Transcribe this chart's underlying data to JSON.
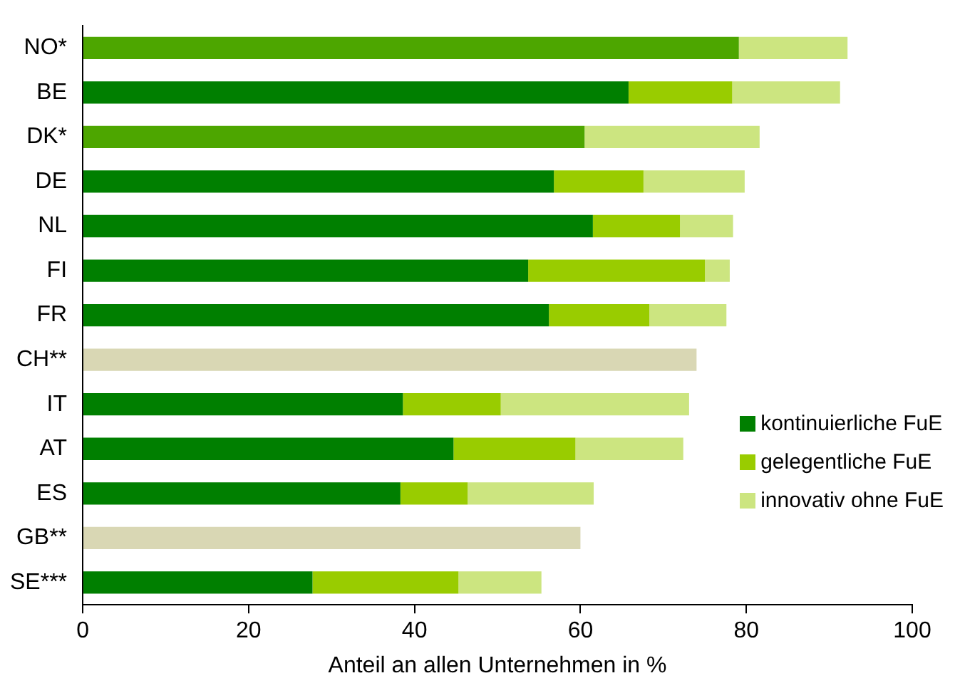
{
  "chart_data": {
    "type": "bar",
    "orientation": "horizontal",
    "stacked": true,
    "xlabel": "Anteil an allen Unternehmen in %",
    "categories": [
      "NO*",
      "BE",
      "DK*",
      "DE",
      "NL",
      "FI",
      "FR",
      "CH**",
      "IT",
      "AT",
      "ES",
      "GB**",
      "SE***"
    ],
    "series": [
      {
        "name": "kontinuierliche FuE",
        "color": "#007f00",
        "values": [
          null,
          65.8,
          null,
          56.8,
          61.5,
          53.7,
          56.2,
          null,
          38.6,
          44.7,
          38.3,
          null,
          27.7
        ]
      },
      {
        "name": "gelegentliche FuE",
        "color": "#99cc00",
        "values": [
          null,
          12.5,
          null,
          10.8,
          10.5,
          21.3,
          12.1,
          null,
          11.8,
          14.7,
          8.1,
          null,
          17.6
        ]
      },
      {
        "color": "#4da600",
        "values": [
          79.1,
          null,
          60.5,
          null,
          null,
          null,
          null,
          null,
          null,
          null,
          null,
          null,
          null
        ]
      },
      {
        "color": "#d9d7b4",
        "values": [
          null,
          null,
          null,
          null,
          null,
          null,
          null,
          74.0,
          null,
          null,
          null,
          60.0,
          null
        ]
      },
      {
        "name": "innovativ ohne FuE",
        "color": "#cce580",
        "values": [
          13.1,
          13.0,
          21.1,
          12.2,
          6.4,
          3.0,
          9.3,
          null,
          22.7,
          13.0,
          15.2,
          null,
          10.0
        ]
      }
    ],
    "xlim": [
      0,
      100
    ],
    "xticks": [
      0,
      20,
      40,
      60,
      80,
      100
    ],
    "grid": false,
    "legend": "bottom right"
  }
}
